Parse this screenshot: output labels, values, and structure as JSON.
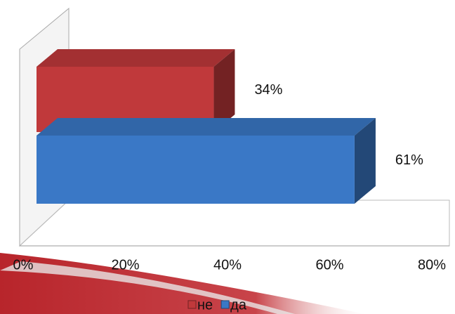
{
  "chart_data": {
    "type": "bar3d_horizontal",
    "series": [
      {
        "name": "не",
        "color": "#c0393b",
        "values": [
          34
        ],
        "value_labels": [
          "34%"
        ]
      },
      {
        "name": "да",
        "color": "#3a78c6",
        "values": [
          61
        ],
        "value_labels": [
          "61%"
        ]
      }
    ],
    "xlim": [
      0,
      80
    ],
    "xticks": [
      {
        "value": 0,
        "label": "0%"
      },
      {
        "value": 20,
        "label": "20%"
      },
      {
        "value": 40,
        "label": "40%"
      },
      {
        "value": 60,
        "label": "60%"
      },
      {
        "value": 80,
        "label": "80%"
      }
    ],
    "legend": "bottom"
  }
}
